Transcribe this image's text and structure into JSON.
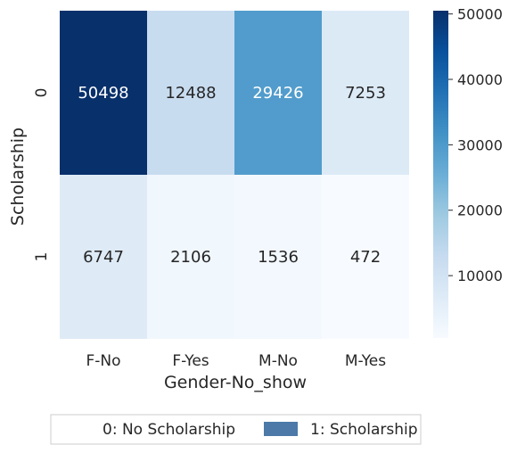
{
  "chart_data": {
    "type": "heatmap",
    "xlabel": "Gender-No_show",
    "ylabel": "Scholarship",
    "x_categories": [
      "F-No",
      "F-Yes",
      "M-No",
      "M-Yes"
    ],
    "y_categories": [
      "0",
      "1"
    ],
    "values": [
      [
        50498,
        12488,
        29426,
        7253
      ],
      [
        6747,
        2106,
        1536,
        472
      ]
    ],
    "colormap": "Blues",
    "colorbar": {
      "range": [
        472,
        50498
      ],
      "ticks": [
        10000,
        20000,
        30000,
        40000,
        50000
      ],
      "tick_labels": [
        "10000",
        "20000",
        "30000",
        "40000",
        "50000"
      ]
    },
    "legend": {
      "placement": "bottom-center",
      "entries": [
        {
          "label": "0: No Scholarship",
          "color": "#ffffff"
        },
        {
          "label": "1: Scholarship",
          "color": "#4c79a8"
        }
      ]
    }
  }
}
